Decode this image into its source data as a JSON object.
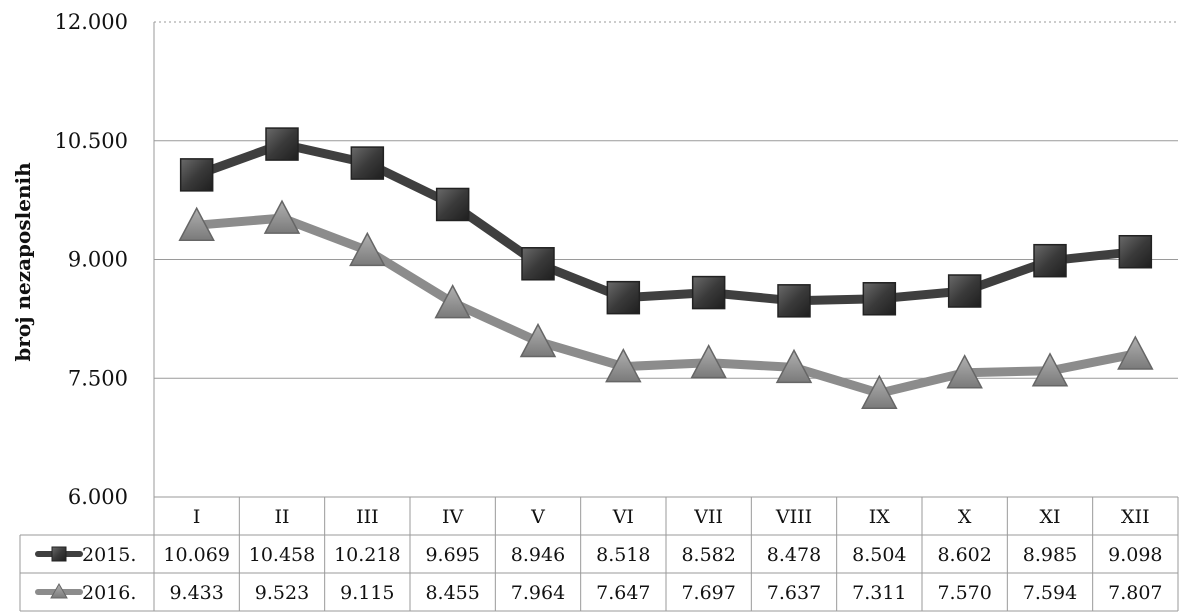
{
  "chart_data": {
    "type": "line",
    "ylabel": "broj nezaposlenih",
    "ylim": [
      6000,
      12000
    ],
    "yticks": [
      "6.000",
      "7.500",
      "9.000",
      "10.500",
      "12.000"
    ],
    "ytick_values": [
      6000,
      7500,
      9000,
      10500,
      12000
    ],
    "grid": true,
    "legend_placement": "data-table-left",
    "categories": [
      "I",
      "II",
      "III",
      "IV",
      "V",
      "VI",
      "VII",
      "VIII",
      "IX",
      "X",
      "XI",
      "XII"
    ],
    "series": [
      {
        "name": "2015.",
        "marker": "square",
        "color": "#3f3f3f",
        "values": [
          10069,
          10458,
          10218,
          9695,
          8946,
          8518,
          8582,
          8478,
          8504,
          8602,
          8985,
          9098
        ],
        "labels": [
          "10.069",
          "10.458",
          "10.218",
          "9.695",
          "8.946",
          "8.518",
          "8.582",
          "8.478",
          "8.504",
          "8.602",
          "8.985",
          "9.098"
        ]
      },
      {
        "name": "2016.",
        "marker": "triangle",
        "color": "#8c8c8c",
        "values": [
          9433,
          9523,
          9115,
          8455,
          7964,
          7647,
          7697,
          7637,
          7311,
          7570,
          7594,
          7807
        ],
        "labels": [
          "9.433",
          "9.523",
          "9.115",
          "8.455",
          "7.964",
          "7.647",
          "7.697",
          "7.637",
          "7.311",
          "7.570",
          "7.594",
          "7.807"
        ]
      }
    ]
  }
}
